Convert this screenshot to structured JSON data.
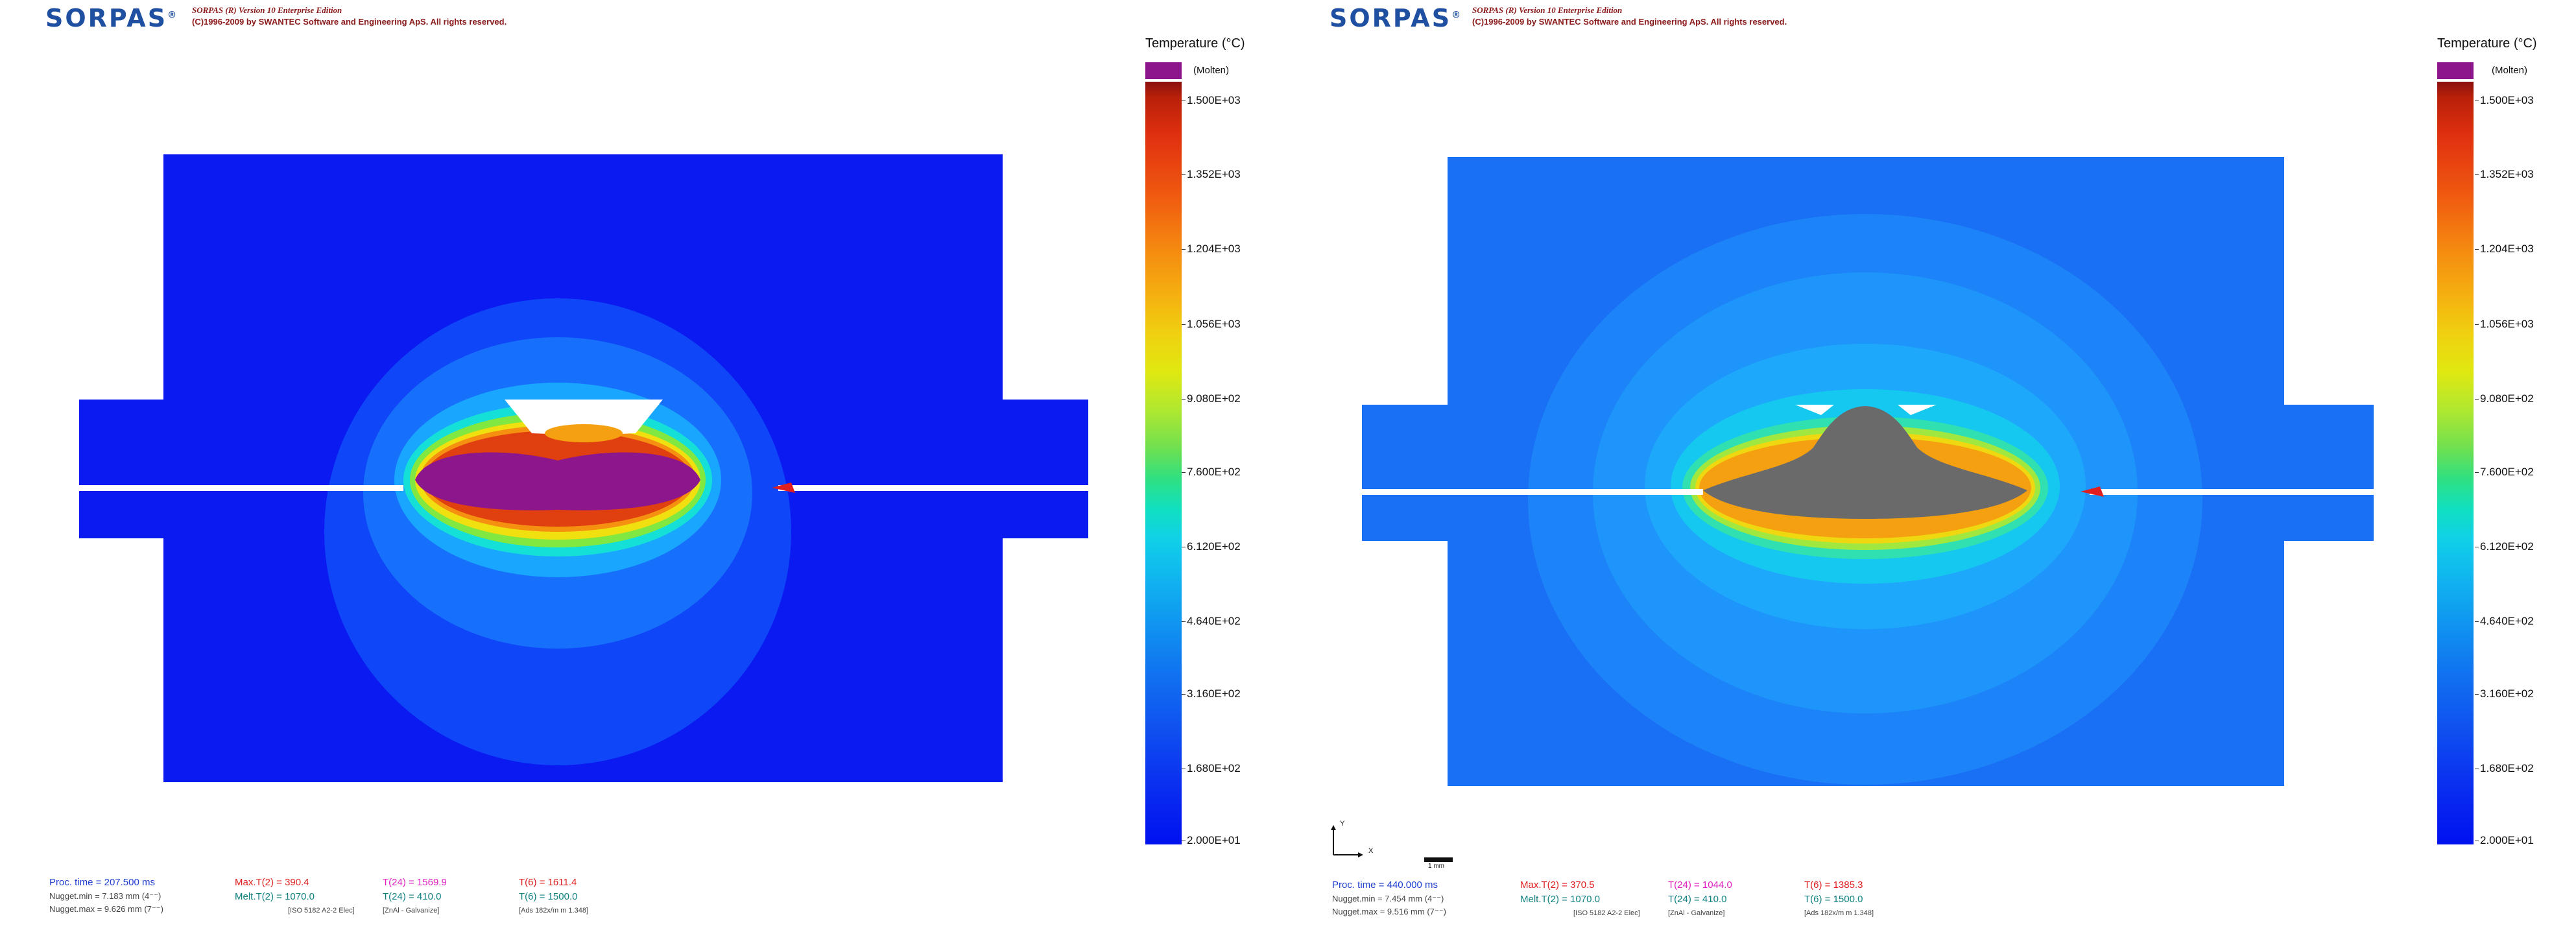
{
  "legend": {
    "title": "Temperature (°C)",
    "molten_label": "(Molten)",
    "ticks": [
      "1.500E+03",
      "1.352E+03",
      "1.204E+03",
      "1.056E+03",
      "9.080E+02",
      "7.600E+02",
      "6.120E+02",
      "4.640E+02",
      "3.160E+02",
      "1.680E+02",
      "2.000E+01"
    ],
    "molten_color": "#8c168c"
  },
  "header": {
    "logo": "SORPAS",
    "logo_mark": "®",
    "version": "SORPAS (R) Version 10 Enterprise Edition",
    "copyright": "(C)1996-2009 by SWANTEC Software and Engineering ApS. All rights reserved."
  },
  "panels": [
    {
      "proc_time": "Proc. time = 207.500 ms",
      "nugget_min": "Nugget.min = 7.183 mm  (4⁻⁻)",
      "nugget_max": "Nugget.max = 9.626 mm  (7⁻⁻)",
      "max_t2": "Max.T(2) =   390.4",
      "melt_t2": "Melt.T(2) =   1070.0",
      "t24": "T(24) =   1569.9",
      "t24_b": "T(24) =   410.0",
      "t6": "T(6) =   1611.4",
      "t6_b": "T(6) =   1500.0",
      "note1": "[ISO 5182   A2-2 Elec]",
      "note2": "[ZnAl - Galvanize]",
      "note3": "[Ads 182x/m  m 1.348]"
    },
    {
      "proc_time": "Proc. time = 440.000 ms",
      "nugget_min": "Nugget.min = 7.454 mm  (4⁻⁻)",
      "nugget_max": "Nugget.max = 9.516 mm  (7⁻⁻)",
      "max_t2": "Max.T(2) =   370.5",
      "melt_t2": "Melt.T(2) =   1070.0",
      "t24": "T(24) =   1044.0",
      "t24_b": "T(24) =   410.0",
      "t6": "T(6) =   1385.3",
      "t6_b": "T(6) =   1500.0",
      "note1": "[ISO 5182   A2-2 Elec]",
      "note2": "[ZnAl - Galvanize]",
      "note3": "[Ads 182x/m  m 1.348]",
      "axis_y": "Y",
      "axis_x": "X",
      "scale_label": "1 mm"
    }
  ]
}
